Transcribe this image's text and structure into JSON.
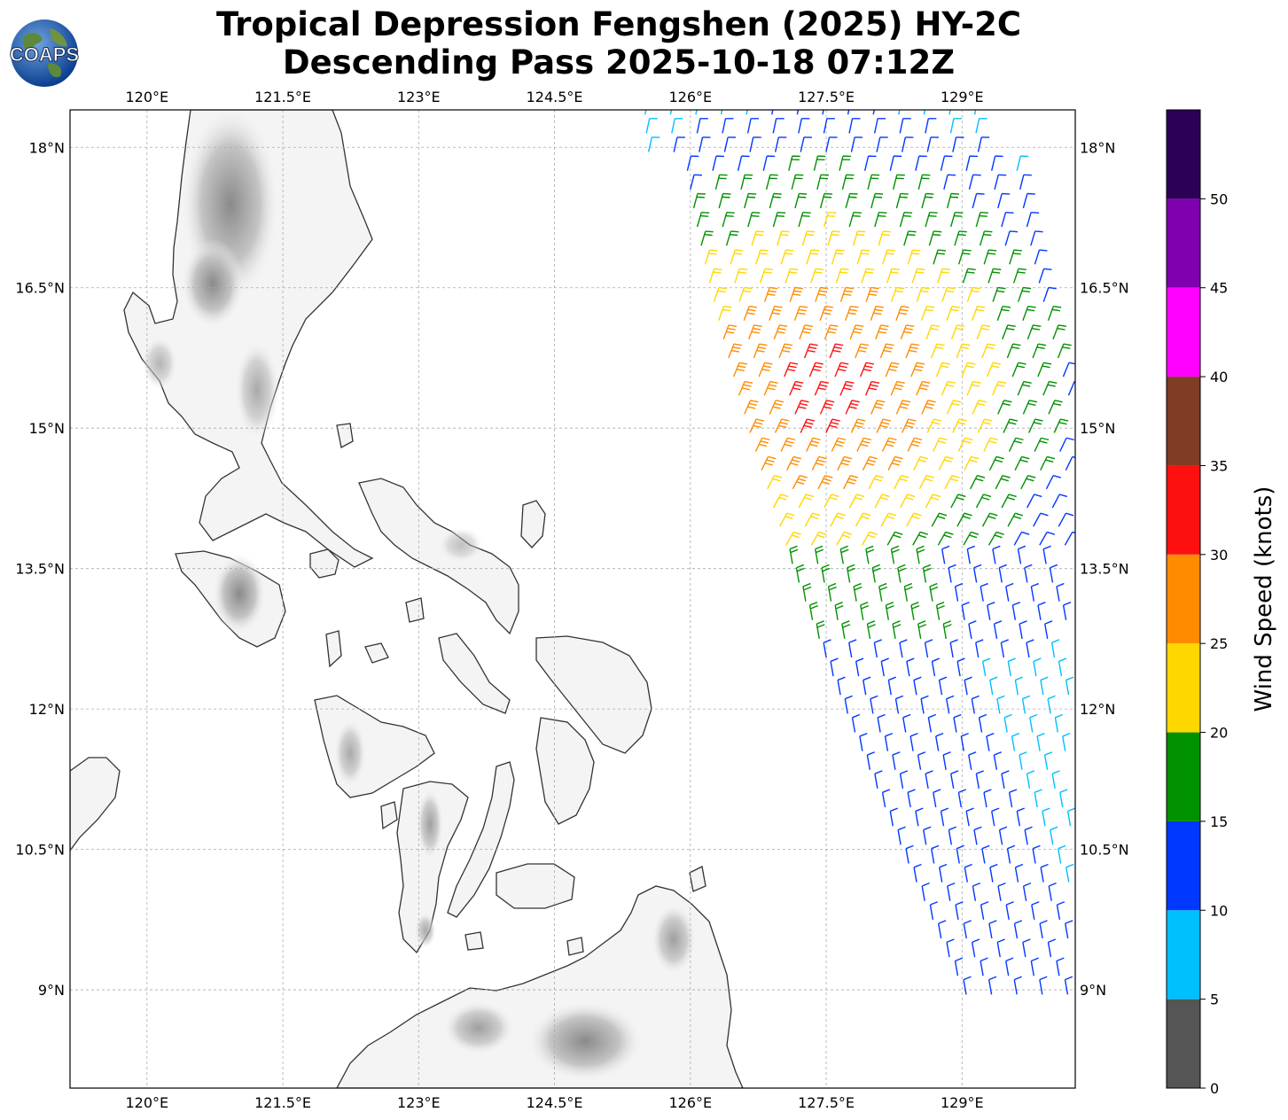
{
  "title": {
    "line1": "Tropical Depression Fengshen (2025) HY-2C",
    "line2": "Descending Pass 2025-10-18 07:12Z"
  },
  "logo": {
    "text": "COAPS",
    "icon": "globe-logo-icon"
  },
  "map": {
    "lon_range": [
      119.15,
      130.25
    ],
    "lat_range": [
      7.95,
      18.4
    ],
    "lon_ticks": [
      120,
      121.5,
      123,
      124.5,
      126,
      127.5,
      129
    ],
    "lon_tick_labels": [
      "120°E",
      "121.5°E",
      "123°E",
      "124.5°E",
      "126°E",
      "127.5°E",
      "129°E"
    ],
    "lat_ticks": [
      18,
      16.5,
      15,
      13.5,
      12,
      10.5,
      9
    ],
    "lat_tick_labels": [
      "18°N",
      "16.5°N",
      "15°N",
      "13.5°N",
      "12°N",
      "10.5°N",
      "9°N"
    ],
    "gridlines": true,
    "land_style": "grayscale terrain with dark coastline",
    "swath": "descending scatterometer swath of wind barbs, east side of map"
  },
  "colorbar": {
    "label": "Wind Speed (knots)",
    "tick_values": [
      0,
      5,
      10,
      15,
      20,
      25,
      30,
      35,
      40,
      45,
      50
    ],
    "tick_labels": [
      "0",
      "5",
      "10",
      "15",
      "20",
      "25",
      "30",
      "35",
      "40",
      "45",
      "50"
    ],
    "bins": [
      {
        "min": 0,
        "max": 5,
        "color": "#555555"
      },
      {
        "min": 5,
        "max": 10,
        "color": "#00bfff"
      },
      {
        "min": 10,
        "max": 15,
        "color": "#0038ff"
      },
      {
        "min": 15,
        "max": 20,
        "color": "#009100"
      },
      {
        "min": 20,
        "max": 25,
        "color": "#ffd700"
      },
      {
        "min": 25,
        "max": 30,
        "color": "#ff8c00"
      },
      {
        "min": 30,
        "max": 35,
        "color": "#ff1010"
      },
      {
        "min": 35,
        "max": 40,
        "color": "#7f3d25"
      },
      {
        "min": 40,
        "max": 45,
        "color": "#ff00ff"
      },
      {
        "min": 45,
        "max": 50,
        "color": "#8000b0"
      },
      {
        "min": 50,
        "max": 55,
        "color": "#2c0055"
      }
    ]
  }
}
